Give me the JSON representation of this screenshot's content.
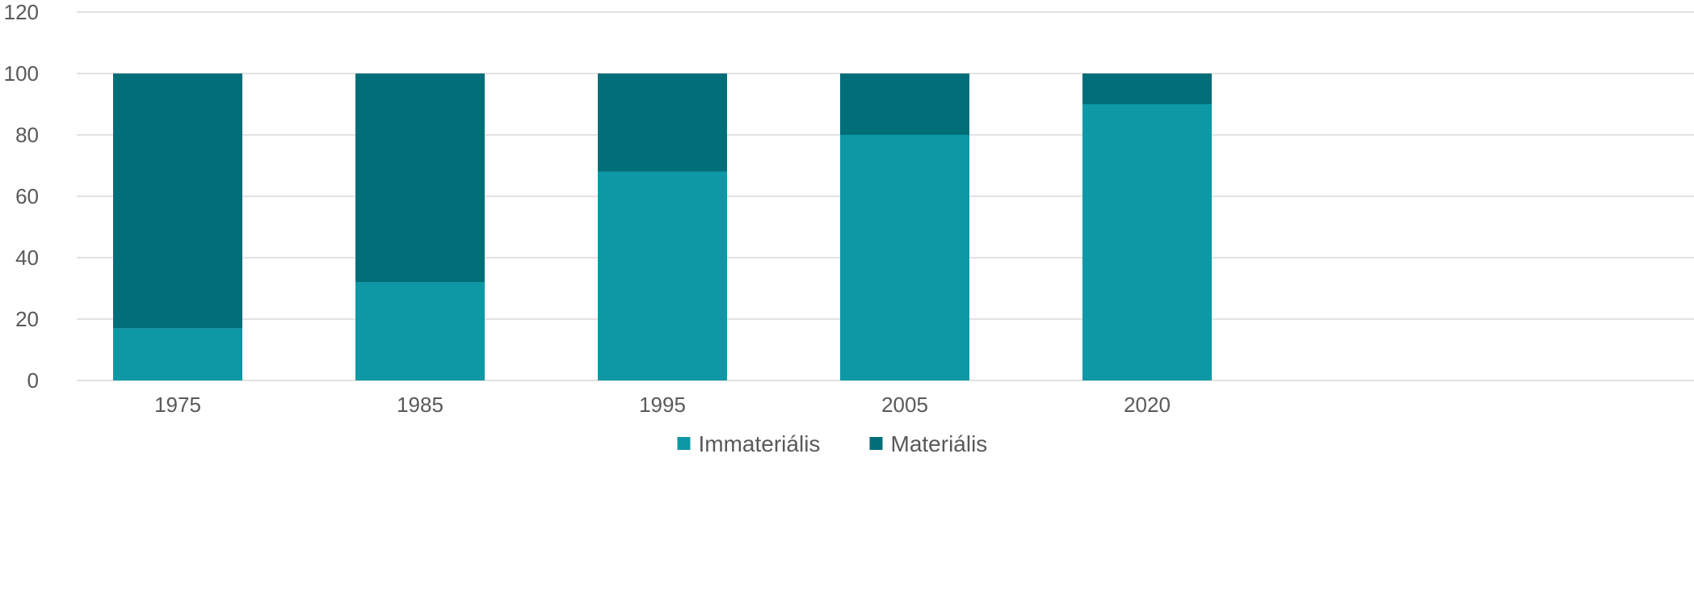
{
  "chart_data": {
    "type": "bar",
    "stacked": true,
    "categories": [
      "1975",
      "1985",
      "1995",
      "2005",
      "2020"
    ],
    "series": [
      {
        "name": "Immateriális",
        "values": [
          17,
          32,
          68,
          80,
          90
        ],
        "color": "#0e98a5"
      },
      {
        "name": "Materiális",
        "values": [
          83,
          68,
          32,
          20,
          10
        ],
        "color": "#006e78"
      }
    ],
    "title": "",
    "xlabel": "",
    "ylabel": "",
    "ylim": [
      0,
      120
    ],
    "yticks": [
      "0",
      "20",
      "40",
      "60",
      "80",
      "100",
      "120"
    ],
    "grid": true,
    "gridColor": "#d9d9d9",
    "legend": "bottom"
  }
}
